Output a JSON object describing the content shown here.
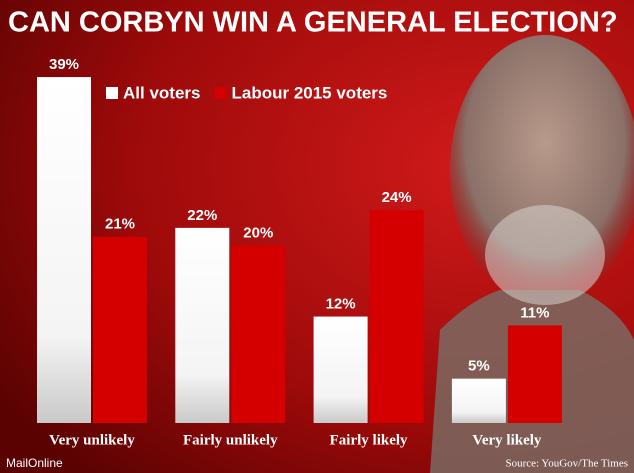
{
  "chart_data": {
    "type": "bar",
    "title": "CAN CORBYN WIN A GENERAL ELECTION?",
    "categories": [
      "Very unlikely",
      "Fairly unlikely",
      "Fairly likely",
      "Very likely"
    ],
    "series": [
      {
        "name": "All voters",
        "color": "#ffffff",
        "values": [
          39,
          22,
          12,
          5
        ],
        "value_labels": [
          "39%",
          "22%",
          "12%",
          "5%"
        ]
      },
      {
        "name": "Labour 2015 voters",
        "color": "#d40000",
        "values": [
          21,
          20,
          24,
          11
        ],
        "value_labels": [
          "21%",
          "20%",
          "24%",
          "11%"
        ]
      }
    ],
    "credit": "MailOnline",
    "source": "Source: YouGov/The Times"
  }
}
